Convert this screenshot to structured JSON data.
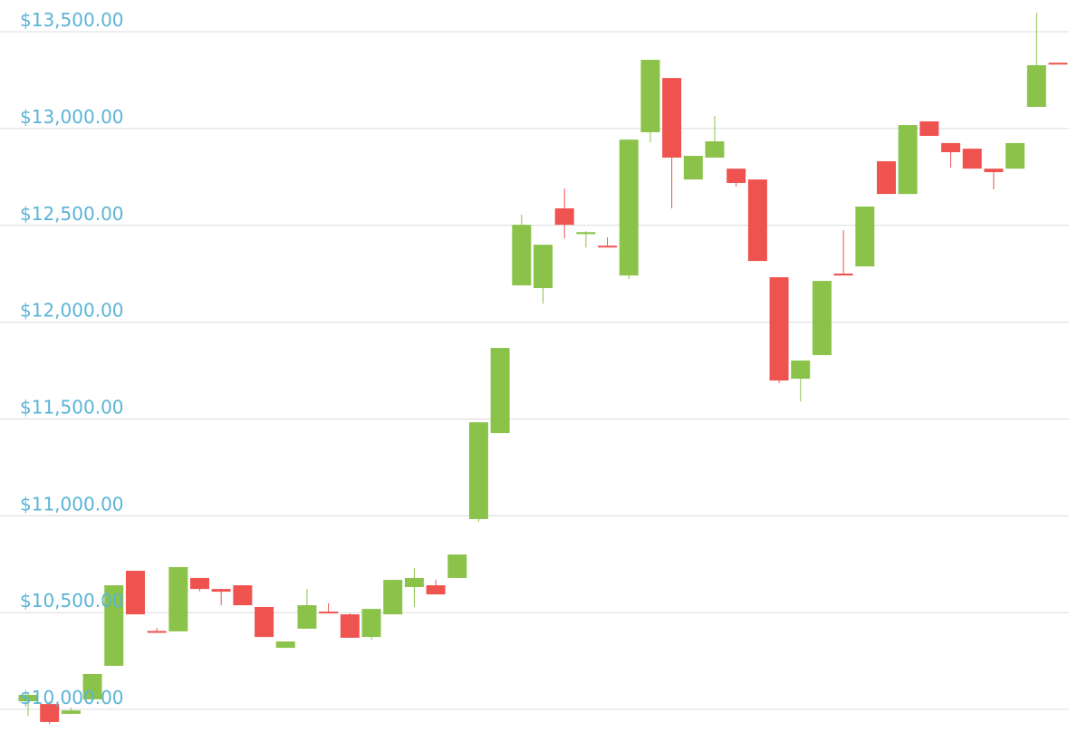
{
  "chart_data": {
    "type": "candlestick",
    "open": [
      10042,
      10028,
      9977,
      10052,
      10225,
      10716,
      10405,
      10403,
      10679,
      10622,
      10641,
      10529,
      10318,
      10417,
      10505,
      10491,
      10374,
      10491,
      10632,
      10641,
      10679,
      10983,
      11427,
      12190,
      12176,
      12588,
      12455,
      12395,
      12241,
      12981,
      13261,
      12737,
      12850,
      12793,
      12737,
      12232,
      11708,
      11830,
      12251,
      12288,
      12831,
      12662,
      13037,
      12925,
      12896,
      12793,
      12793,
      13112,
      13340
    ],
    "high": [
      10080,
      10040,
      10010,
      10183,
      10641,
      10716,
      10420,
      10735,
      10679,
      10622,
      10641,
      10529,
      10351,
      10622,
      10548,
      10496,
      10519,
      10669,
      10730,
      10670,
      10800,
      11483,
      11867,
      12555,
      12400,
      12690,
      12470,
      12438,
      12943,
      13355,
      13261,
      12859,
      13065,
      12793,
      12737,
      12232,
      11802,
      12213,
      12475,
      12597,
      12831,
      13018,
      13037,
      12925,
      12896,
      12793,
      12925,
      13598,
      13340
    ],
    "low": [
      9967,
      9925,
      9975,
      10052,
      10225,
      10491,
      10395,
      10403,
      10610,
      10538,
      10538,
      10374,
      10318,
      10417,
      10496,
      10370,
      10360,
      10491,
      10529,
      10594,
      10679,
      10969,
      11427,
      12190,
      12096,
      12433,
      12386,
      12390,
      12223,
      12929,
      12588,
      12737,
      12850,
      12700,
      12316,
      11685,
      11591,
      11830,
      12241,
      12288,
      12662,
      12662,
      12962,
      12798,
      12793,
      12686,
      12793,
      13112,
      13335
    ],
    "close": [
      10075,
      9935,
      9995,
      10183,
      10641,
      10491,
      10398,
      10735,
      10622,
      10608,
      10538,
      10374,
      10351,
      10538,
      10496,
      10370,
      10519,
      10669,
      10679,
      10594,
      10800,
      11483,
      11867,
      12503,
      12400,
      12503,
      12465,
      12390,
      12943,
      13355,
      12850,
      12859,
      12934,
      12719,
      12316,
      11699,
      11802,
      12213,
      12241,
      12597,
      12662,
      13018,
      12962,
      12878,
      12793,
      12775,
      12925,
      13327,
      13335
    ],
    "up_color": "#8bc34a",
    "down_color": "#ef5350",
    "ylim": [
      9902,
      13664
    ],
    "yticks": [
      {
        "value": 10000,
        "label": "$10,000.00"
      },
      {
        "value": 10500,
        "label": "$10,500.00"
      },
      {
        "value": 11000,
        "label": "$11,000.00"
      },
      {
        "value": 11500,
        "label": "$11,500.00"
      },
      {
        "value": 12000,
        "label": "$12,000.00"
      },
      {
        "value": 12500,
        "label": "$12,500.00"
      },
      {
        "value": 13000,
        "label": "$13,000.00"
      },
      {
        "value": 13500,
        "label": "$13,500.00"
      }
    ],
    "grid": true
  }
}
